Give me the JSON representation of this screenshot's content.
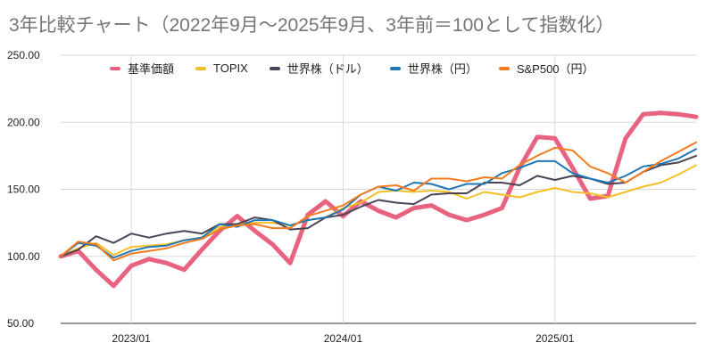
{
  "chart_data": {
    "type": "line",
    "title": "3年比較チャート（2022年9月～2025年9月、3年前＝100として指数化）",
    "xlabel": "",
    "ylabel": "",
    "ylim": [
      50,
      250
    ],
    "yticks": [
      "250.00",
      "200.00",
      "150.00",
      "100.00",
      "50.00"
    ],
    "ytick_values": [
      250,
      200,
      150,
      100,
      50
    ],
    "xticks": [
      "2023/01",
      "2024/01",
      "2025/01"
    ],
    "xtick_indices": [
      4,
      16,
      28
    ],
    "x": [
      "2022/09",
      "2022/10",
      "2022/11",
      "2022/12",
      "2023/01",
      "2023/02",
      "2023/03",
      "2023/04",
      "2023/05",
      "2023/06",
      "2023/07",
      "2023/08",
      "2023/09",
      "2023/10",
      "2023/11",
      "2023/12",
      "2024/01",
      "2024/02",
      "2024/03",
      "2024/04",
      "2024/05",
      "2024/06",
      "2024/07",
      "2024/08",
      "2024/09",
      "2024/10",
      "2024/11",
      "2024/12",
      "2025/01",
      "2025/02",
      "2025/03",
      "2025/04",
      "2025/05",
      "2025/06",
      "2025/07",
      "2025/08",
      "2025/09"
    ],
    "grid": true,
    "legend_position": "top",
    "series": [
      {
        "name": "基準価額",
        "color": "#e8637f",
        "width": 5,
        "values": [
          100,
          104,
          90,
          78,
          93,
          98,
          95,
          90,
          105,
          119,
          130,
          119,
          109,
          95,
          131,
          141,
          130,
          141,
          134,
          129,
          136,
          138,
          131,
          127,
          131,
          136,
          166,
          189,
          188,
          166,
          143,
          145,
          188,
          206,
          207,
          206,
          204
        ]
      },
      {
        "name": "TOPIX",
        "color": "#f5bf27",
        "width": 2,
        "values": [
          100,
          106,
          110,
          101,
          107,
          108,
          109,
          112,
          114,
          122,
          124,
          125,
          125,
          123,
          127,
          129,
          136,
          140,
          148,
          149,
          148,
          149,
          148,
          143,
          148,
          146,
          144,
          148,
          151,
          148,
          147,
          144,
          148,
          152,
          155,
          161,
          168
        ]
      },
      {
        "name": "世界株（ドル）",
        "color": "#4a4456",
        "width": 2,
        "values": [
          100,
          105,
          115,
          110,
          117,
          114,
          117,
          119,
          117,
          124,
          124,
          129,
          127,
          120,
          121,
          129,
          131,
          137,
          142,
          140,
          139,
          146,
          147,
          147,
          155,
          155,
          153,
          160,
          157,
          160,
          158,
          154,
          155,
          163,
          168,
          170,
          175
        ]
      },
      {
        "name": "世界株（円）",
        "color": "#1f77b4",
        "width": 2,
        "values": [
          100,
          110,
          108,
          99,
          104,
          107,
          108,
          112,
          114,
          124,
          122,
          127,
          127,
          123,
          127,
          129,
          135,
          146,
          152,
          149,
          155,
          154,
          150,
          154,
          154,
          162,
          166,
          171,
          171,
          162,
          158,
          155,
          160,
          167,
          169,
          173,
          180
        ]
      },
      {
        "name": "S&P500（円）",
        "color": "#f47b20",
        "width": 2,
        "values": [
          100,
          111,
          109,
          97,
          102,
          104,
          106,
          110,
          113,
          120,
          123,
          124,
          121,
          121,
          130,
          134,
          138,
          146,
          152,
          153,
          149,
          158,
          158,
          156,
          159,
          158,
          168,
          175,
          181,
          179,
          167,
          162,
          155,
          163,
          171,
          178,
          185
        ]
      }
    ]
  }
}
